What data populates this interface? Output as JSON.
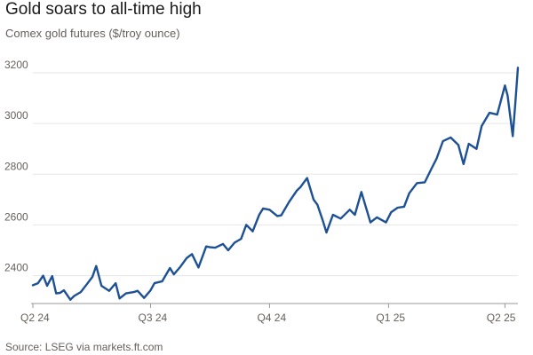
{
  "header": {
    "title": "Gold soars to all-time high",
    "subtitle": "Comex gold futures ($/troy ounce)"
  },
  "footer": {
    "source": "Source: LSEG via markets.ft.com"
  },
  "colors": {
    "line": "#1d5193",
    "grid": "#e6e6e6",
    "text": "#66605c"
  },
  "chart_data": {
    "type": "line",
    "title": "Gold soars to all-time high",
    "subtitle": "Comex gold futures ($/troy ounce)",
    "xlabel": "",
    "ylabel": "",
    "x_tick_labels": [
      "Q2 24",
      "Q3 24",
      "Q4 24",
      "Q1 25",
      "Q2 25"
    ],
    "x_ticks": [
      "2024-04-01",
      "2024-07-01",
      "2024-10-01",
      "2025-01-01",
      "2025-04-01"
    ],
    "x_range": [
      "2024-04-01",
      "2025-04-11"
    ],
    "y_ticks": [
      2400,
      2600,
      2800,
      3000,
      3200
    ],
    "ylim": [
      2290,
      3270
    ],
    "grid": "horizontal",
    "legend": "none",
    "series": [
      {
        "x": [
          "2024-04-01",
          "2024-04-05",
          "2024-04-09",
          "2024-04-12",
          "2024-04-16",
          "2024-04-19",
          "2024-04-22",
          "2024-04-25",
          "2024-04-30",
          "2024-05-03",
          "2024-05-08",
          "2024-05-13",
          "2024-05-17",
          "2024-05-20",
          "2024-05-24",
          "2024-05-30",
          "2024-06-04",
          "2024-06-07",
          "2024-06-12",
          "2024-06-18",
          "2024-06-21",
          "2024-06-26",
          "2024-07-01",
          "2024-07-04",
          "2024-07-10",
          "2024-07-16",
          "2024-07-19",
          "2024-07-24",
          "2024-07-29",
          "2024-08-02",
          "2024-08-07",
          "2024-08-13",
          "2024-08-16",
          "2024-08-20",
          "2024-08-26",
          "2024-08-30",
          "2024-09-04",
          "2024-09-09",
          "2024-09-13",
          "2024-09-18",
          "2024-09-23",
          "2024-09-26",
          "2024-10-01",
          "2024-10-07",
          "2024-10-10",
          "2024-10-16",
          "2024-10-22",
          "2024-10-25",
          "2024-10-30",
          "2024-11-04",
          "2024-11-07",
          "2024-11-11",
          "2024-11-14",
          "2024-11-19",
          "2024-11-25",
          "2024-12-02",
          "2024-12-06",
          "2024-12-11",
          "2024-12-18",
          "2024-12-23",
          "2024-12-30",
          "2025-01-03",
          "2025-01-08",
          "2025-01-13",
          "2025-01-17",
          "2025-01-23",
          "2025-01-29",
          "2025-02-03",
          "2025-02-07",
          "2025-02-12",
          "2025-02-18",
          "2025-02-24",
          "2025-02-28",
          "2025-03-04",
          "2025-03-10",
          "2025-03-14",
          "2025-03-20",
          "2025-03-26",
          "2025-04-01",
          "2025-04-03",
          "2025-04-07",
          "2025-04-09",
          "2025-04-11"
        ],
        "values": [
          2362,
          2370,
          2400,
          2360,
          2398,
          2330,
          2332,
          2342,
          2305,
          2320,
          2335,
          2368,
          2395,
          2438,
          2360,
          2340,
          2370,
          2310,
          2330,
          2335,
          2340,
          2312,
          2342,
          2370,
          2378,
          2430,
          2405,
          2435,
          2470,
          2485,
          2432,
          2515,
          2512,
          2510,
          2525,
          2500,
          2530,
          2545,
          2600,
          2575,
          2640,
          2665,
          2660,
          2635,
          2638,
          2690,
          2735,
          2750,
          2785,
          2700,
          2680,
          2620,
          2570,
          2640,
          2625,
          2660,
          2640,
          2730,
          2610,
          2630,
          2610,
          2650,
          2668,
          2672,
          2725,
          2765,
          2768,
          2820,
          2860,
          2930,
          2945,
          2915,
          2840,
          2920,
          2900,
          2990,
          3042,
          3035,
          3150,
          3110,
          2950,
          3080,
          3220
        ]
      }
    ]
  }
}
